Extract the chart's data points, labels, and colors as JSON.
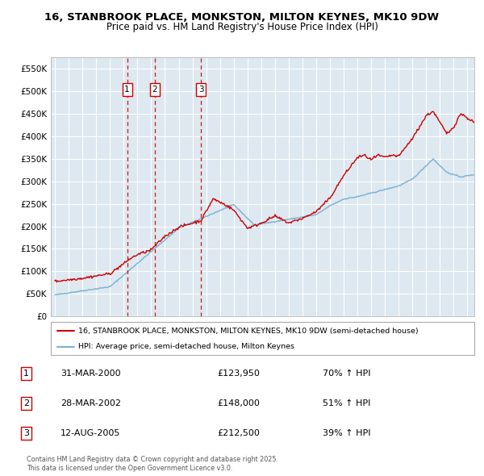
{
  "title": "16, STANBROOK PLACE, MONKSTON, MILTON KEYNES, MK10 9DW",
  "subtitle": "Price paid vs. HM Land Registry's House Price Index (HPI)",
  "legend_line1": "16, STANBROOK PLACE, MONKSTON, MILTON KEYNES, MK10 9DW (semi-detached house)",
  "legend_line2": "HPI: Average price, semi-detached house, Milton Keynes",
  "footer1": "Contains HM Land Registry data © Crown copyright and database right 2025.",
  "footer2": "This data is licensed under the Open Government Licence v3.0.",
  "transactions": [
    {
      "num": 1,
      "date": "31-MAR-2000",
      "price": "£123,950",
      "pct": "70% ↑ HPI",
      "x_year": 2000.25
    },
    {
      "num": 2,
      "date": "28-MAR-2002",
      "price": "£148,000",
      "pct": "51% ↑ HPI",
      "x_year": 2002.25
    },
    {
      "num": 3,
      "date": "12-AUG-2005",
      "price": "£212,500",
      "pct": "39% ↑ HPI",
      "x_year": 2005.62
    }
  ],
  "red_line_color": "#cc0000",
  "blue_line_color": "#7ab0d4",
  "bg_color": "#dde8f0",
  "grid_color": "#ffffff",
  "ylim": [
    0,
    575000
  ],
  "yticks": [
    0,
    50000,
    100000,
    150000,
    200000,
    250000,
    300000,
    350000,
    400000,
    450000,
    500000,
    550000
  ],
  "ytick_labels": [
    "£0",
    "£50K",
    "£100K",
    "£150K",
    "£200K",
    "£250K",
    "£300K",
    "£350K",
    "£400K",
    "£450K",
    "£500K",
    "£550K"
  ],
  "xlim_start": 1994.7,
  "xlim_end": 2025.5,
  "xticks": [
    1995,
    1996,
    1997,
    1998,
    1999,
    2000,
    2001,
    2002,
    2003,
    2004,
    2005,
    2006,
    2007,
    2008,
    2009,
    2010,
    2011,
    2012,
    2013,
    2014,
    2015,
    2016,
    2017,
    2018,
    2019,
    2020,
    2021,
    2022,
    2023,
    2024,
    2025
  ]
}
